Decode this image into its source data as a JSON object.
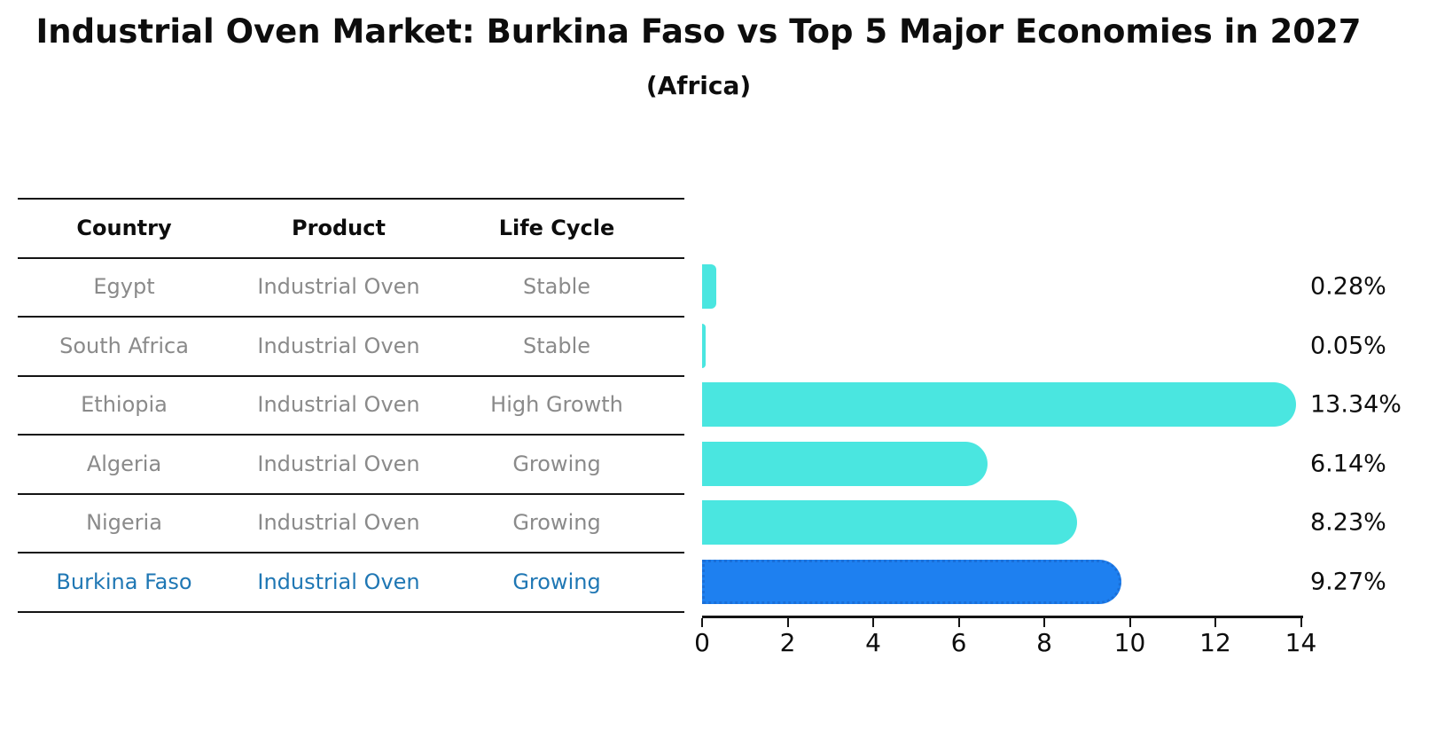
{
  "title": "Industrial Oven Market: Burkina Faso vs Top 5 Major Economies in 2027",
  "subtitle": "(Africa)",
  "table": {
    "headers": [
      "Country",
      "Product",
      "Life Cycle"
    ],
    "rows": [
      {
        "country": "Egypt",
        "product": "Industrial Oven",
        "life_cycle": "Stable",
        "highlighted": false
      },
      {
        "country": "South Africa",
        "product": "Industrial Oven",
        "life_cycle": "Stable",
        "highlighted": false
      },
      {
        "country": "Ethiopia",
        "product": "Industrial Oven",
        "life_cycle": "High Growth",
        "highlighted": false
      },
      {
        "country": "Algeria",
        "product": "Industrial Oven",
        "life_cycle": "Growing",
        "highlighted": false
      },
      {
        "country": "Nigeria",
        "product": "Industrial Oven",
        "life_cycle": "Growing",
        "highlighted": false
      },
      {
        "country": "Burkina Faso",
        "product": "Industrial Oven",
        "life_cycle": "Growing",
        "highlighted": true
      }
    ]
  },
  "chart_data": {
    "type": "bar",
    "orientation": "horizontal",
    "title": "Industrial Oven Market: Burkina Faso vs Top 5 Major Economies in 2027",
    "subtitle": "(Africa)",
    "categories": [
      "Egypt",
      "South Africa",
      "Ethiopia",
      "Algeria",
      "Nigeria",
      "Burkina Faso"
    ],
    "values": [
      0.28,
      0.05,
      13.34,
      6.14,
      8.23,
      9.27
    ],
    "value_labels": [
      "0.28%",
      "0.05%",
      "13.34%",
      "6.14%",
      "8.23%",
      "9.27%"
    ],
    "xlim": [
      0,
      14
    ],
    "xticks": [
      0,
      2,
      4,
      6,
      8,
      10,
      12,
      14
    ],
    "grid": false,
    "legend": "none",
    "bar_color": "#4AE6E0",
    "highlight_bar_color": "#1E80F0",
    "highlight_index": 5
  },
  "colors": {
    "background": "#ffffff",
    "bar_cyan": "#4AE6E0",
    "bar_blue": "#1E80F0",
    "highlight_text_blue": "#1f77b4",
    "table_text_gray": "#8a8a8a",
    "axis_black": "#141414"
  }
}
